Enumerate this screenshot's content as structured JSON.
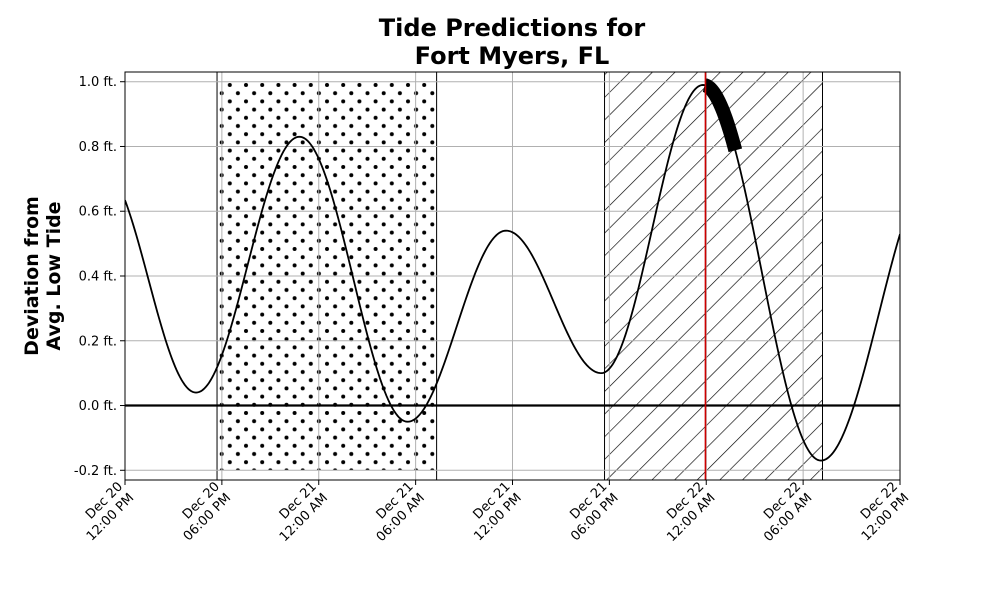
{
  "chart_data": {
    "type": "line",
    "title_lines": [
      "Tide Predictions for",
      "Fort Myers, FL"
    ],
    "ylabel_lines": [
      "Deviation from",
      "Avg. Low Tide"
    ],
    "xlabel": "",
    "ylim": [
      -0.23,
      1.03
    ],
    "y_ticks": [
      {
        "value": -0.2,
        "label": "-0.2 ft."
      },
      {
        "value": 0.0,
        "label": "0.0 ft."
      },
      {
        "value": 0.2,
        "label": "0.2 ft."
      },
      {
        "value": 0.4,
        "label": "0.4 ft."
      },
      {
        "value": 0.6,
        "label": "0.6 ft."
      },
      {
        "value": 0.8,
        "label": "0.8 ft."
      },
      {
        "value": 1.0,
        "label": "1.0 ft."
      }
    ],
    "x_start": "Dec 20 12:00 PM",
    "xlim_hours": [
      0,
      48
    ],
    "x_ticks": [
      {
        "hour": 0,
        "line1": "Dec 20",
        "line2": "12:00 PM"
      },
      {
        "hour": 6,
        "line1": "Dec 20",
        "line2": "06:00 PM"
      },
      {
        "hour": 12,
        "line1": "Dec 21",
        "line2": "12:00 AM"
      },
      {
        "hour": 18,
        "line1": "Dec 21",
        "line2": "06:00 AM"
      },
      {
        "hour": 24,
        "line1": "Dec 21",
        "line2": "12:00 PM"
      },
      {
        "hour": 30,
        "line1": "Dec 21",
        "line2": "06:00 PM"
      },
      {
        "hour": 36,
        "line1": "Dec 22",
        "line2": "12:00 AM"
      },
      {
        "hour": 42,
        "line1": "Dec 22",
        "line2": "06:00 AM"
      },
      {
        "hour": 48,
        "line1": "Dec 22",
        "line2": "12:00 PM"
      }
    ],
    "grid": true,
    "tide_extrema": [
      {
        "hour": -1.5,
        "value": 0.74
      },
      {
        "hour": 4.4,
        "value": 0.04
      },
      {
        "hour": 10.8,
        "value": 0.83
      },
      {
        "hour": 17.5,
        "value": -0.05
      },
      {
        "hour": 23.6,
        "value": 0.54
      },
      {
        "hour": 29.5,
        "value": 0.1
      },
      {
        "hour": 35.8,
        "value": 0.99
      },
      {
        "hour": 43.1,
        "value": -0.17
      },
      {
        "hour": 50.3,
        "value": 0.74
      }
    ],
    "highlight_segment": {
      "from_hour": 35.9,
      "to_hour": 37.8
    },
    "current_time_hour": 35.95,
    "current_time_color": "#cc0000",
    "shaded_periods": [
      {
        "from_hour": 5.7,
        "to_hour": 19.3,
        "pattern": "dots",
        "y_top": 1.0,
        "y_bottom": -0.2
      },
      {
        "from_hour": 29.7,
        "to_hour": 43.2,
        "pattern": "diagonal-hatch",
        "y_top": 1.03,
        "y_bottom": -0.23
      }
    ],
    "line_color": "#000000"
  }
}
